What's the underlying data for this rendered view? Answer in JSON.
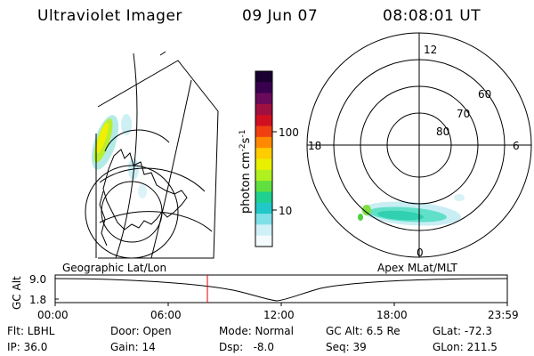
{
  "header": {
    "instrument": "Ultraviolet Imager",
    "date": "09 Jun 07",
    "time": "08:08:01 UT"
  },
  "colorbar": {
    "unit_label": "photon cm",
    "unit_sup1": "-2",
    "unit_s": "s",
    "unit_sup2": "-1",
    "ticks": [
      "100",
      "10"
    ],
    "colors": [
      "#1a0030",
      "#3a0050",
      "#6a0a5a",
      "#a01040",
      "#d01020",
      "#f04010",
      "#ff8a00",
      "#ffcc00",
      "#e8f000",
      "#b0f020",
      "#60e040",
      "#20d090",
      "#20c8c8",
      "#80e0e8",
      "#d0f0f8",
      "#f4fbff"
    ]
  },
  "polar": {
    "mlt_labels": [
      "12",
      "18",
      "6",
      "0"
    ],
    "lat_labels": [
      "60",
      "70",
      "80"
    ]
  },
  "panels": {
    "left_caption": "Geographic Lat/Lon",
    "right_caption": "Apex MLat/MLT"
  },
  "altitude_plot": {
    "ylabel": "GC Alt",
    "y_ticks": [
      "9.0",
      "1.8"
    ],
    "x_ticks": [
      "00:00",
      "06:00",
      "12:00",
      "18:00",
      "23:59"
    ],
    "marker_time": "08:08"
  },
  "info": {
    "row1": [
      "Flt: LBHL",
      "Door: Open",
      "Mode: Normal",
      "GC Alt: 6.5 Re",
      "GLat: -72.3"
    ],
    "row2": [
      "IP: 36.0",
      "Gain: 14",
      "Dsp:   -8.0",
      "Seq: 39",
      "GLon: 211.5"
    ]
  }
}
